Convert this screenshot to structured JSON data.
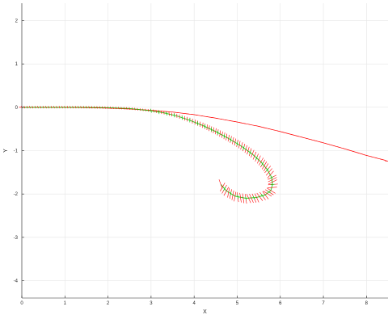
{
  "chart_data": {
    "type": "line",
    "title": "",
    "xlabel": "X",
    "ylabel": "Y",
    "xlim": [
      0,
      8.5
    ],
    "ylim": [
      -4.4,
      2.4
    ],
    "grid": true,
    "x_ticks": [
      0,
      1,
      2,
      3,
      4,
      5,
      6,
      7,
      8
    ],
    "y_ticks": [
      2,
      1,
      0,
      -1,
      -2,
      -3,
      -4
    ],
    "colors": {
      "series_a": "#ff0000",
      "series_b": "#00cc00"
    },
    "series": [
      {
        "x": [
          0.0,
          0.5,
          1.0,
          1.5,
          2.0,
          2.5,
          3.0,
          3.5,
          4.0,
          4.5,
          5.0,
          5.5,
          6.0,
          6.5,
          7.0,
          7.5,
          8.0,
          8.5
        ],
        "y": [
          0.0,
          0.0,
          0.0,
          -0.01,
          -0.02,
          -0.04,
          -0.07,
          -0.11,
          -0.17,
          -0.25,
          -0.34,
          -0.44,
          -0.56,
          -0.69,
          -0.82,
          -0.96,
          -1.11,
          -1.24
        ]
      },
      {
        "x": [
          0.0,
          0.5,
          1.0,
          1.5,
          2.0,
          2.5,
          3.0,
          3.3,
          3.6,
          3.9,
          4.2,
          4.5,
          4.8,
          5.1,
          5.35,
          5.55,
          5.7,
          5.8,
          5.82,
          5.78,
          5.65,
          5.45,
          5.2,
          4.95,
          4.75,
          4.62
        ],
        "y": [
          0.0,
          0.0,
          0.0,
          0.0,
          -0.01,
          -0.03,
          -0.08,
          -0.13,
          -0.2,
          -0.3,
          -0.42,
          -0.56,
          -0.72,
          -0.9,
          -1.08,
          -1.26,
          -1.44,
          -1.62,
          -1.78,
          -1.92,
          -2.02,
          -2.08,
          -2.1,
          -2.05,
          -1.93,
          -1.78
        ]
      }
    ]
  }
}
